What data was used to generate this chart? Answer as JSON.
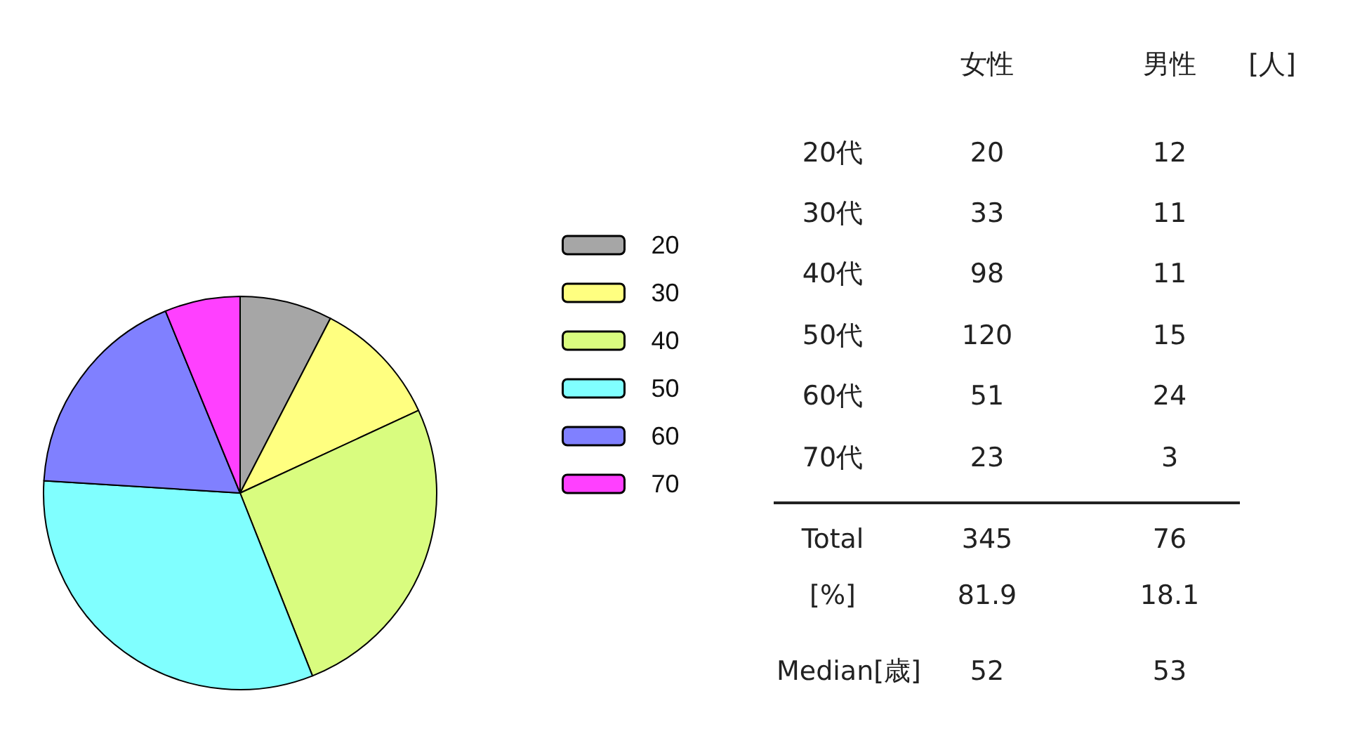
{
  "chart_data": [
    {
      "type": "pie",
      "categories": [
        "20",
        "30",
        "40",
        "50",
        "60",
        "70"
      ],
      "values": [
        7.6,
        10.5,
        25.9,
        32.0,
        17.8,
        6.2
      ],
      "colors": [
        "#a6a6a6",
        "#ffff80",
        "#d9fc7f",
        "#80ffff",
        "#8080ff",
        "#ff40ff"
      ],
      "legend": "right"
    },
    {
      "type": "heatmap",
      "categories": [
        "女性",
        "男性"
      ],
      "y_categories": [
        "20代",
        "30代",
        "40代",
        "50代",
        "60代",
        "70代",
        "Total",
        "[%]",
        "Median[歳]"
      ],
      "cells": [
        [
          20,
          12
        ],
        [
          33,
          11
        ],
        [
          98,
          11
        ],
        [
          120,
          15
        ],
        [
          51,
          24
        ],
        [
          23,
          3
        ],
        [
          345,
          76
        ],
        [
          81.9,
          18.1
        ],
        [
          52,
          53
        ]
      ],
      "data_labels": true,
      "annotations": [
        "[人]"
      ]
    }
  ]
}
